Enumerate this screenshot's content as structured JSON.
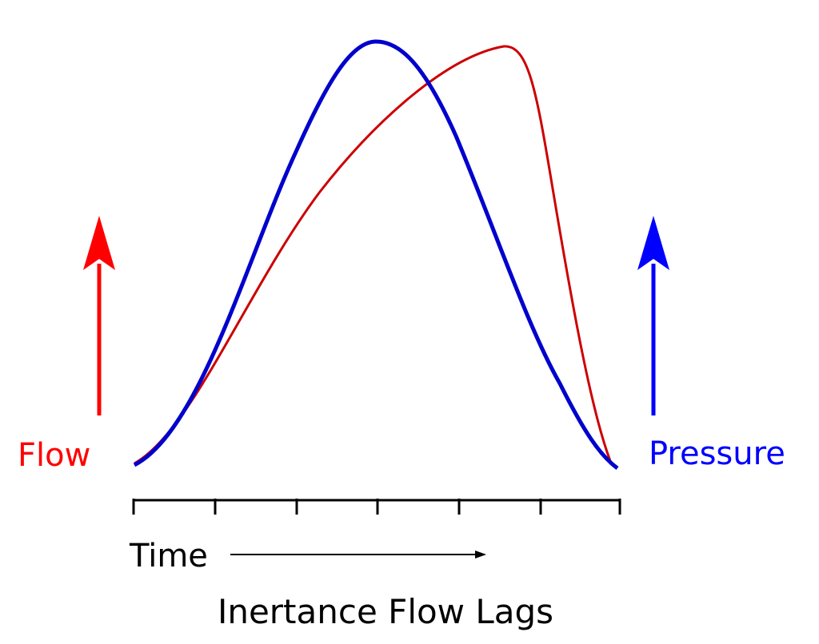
{
  "caption": "Inertance Flow Lags",
  "axis": {
    "label": "Time",
    "ticks": 7
  },
  "left_indicator": {
    "label": "Flow",
    "color": "#ff0000",
    "icon": "arrow-up-icon"
  },
  "right_indicator": {
    "label": "Pressure",
    "color": "#0000ff",
    "icon": "arrow-up-icon"
  },
  "curves": [
    {
      "name_ref": "Pressure",
      "color": "#0000cc",
      "peak_at_fraction_of_time": 0.5
    },
    {
      "name_ref": "Flow",
      "color": "#cc0000",
      "peak_at_fraction_of_time": 0.76
    }
  ]
}
